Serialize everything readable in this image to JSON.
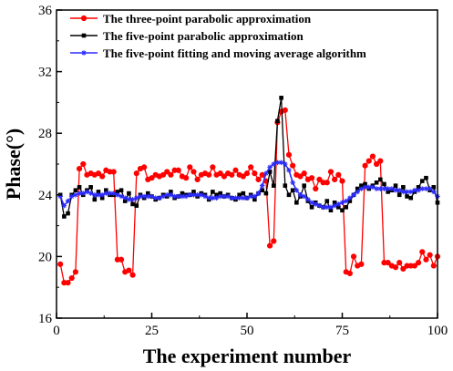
{
  "chart_data": {
    "type": "line",
    "title": "",
    "xlabel": "The experiment number",
    "ylabel": "Phase(°)",
    "xlim": [
      0,
      100
    ],
    "ylim": [
      16,
      36
    ],
    "x_ticks": [
      0,
      25,
      50,
      75,
      100
    ],
    "x_tick_labels": [
      "0",
      "25",
      "50",
      "75",
      "100"
    ],
    "y_ticks": [
      16,
      20,
      24,
      28,
      32,
      36
    ],
    "y_tick_labels": [
      "16",
      "20",
      "24",
      "28",
      "32",
      "36"
    ],
    "grid": false,
    "legend_position": "top-left",
    "series": [
      {
        "name": "The three-point parabolic approximation",
        "color": "#ff0000",
        "marker": "circle",
        "x": [
          1,
          2,
          3,
          4,
          5,
          6,
          7,
          8,
          9,
          10,
          11,
          12,
          13,
          14,
          15,
          16,
          17,
          18,
          19,
          20,
          21,
          22,
          23,
          24,
          25,
          26,
          27,
          28,
          29,
          30,
          31,
          32,
          33,
          34,
          35,
          36,
          37,
          38,
          39,
          40,
          41,
          42,
          43,
          44,
          45,
          46,
          47,
          48,
          49,
          50,
          51,
          52,
          53,
          54,
          55,
          56,
          57,
          58,
          59,
          60,
          61,
          62,
          63,
          64,
          65,
          66,
          67,
          68,
          69,
          70,
          71,
          72,
          73,
          74,
          75,
          76,
          77,
          78,
          79,
          80,
          81,
          82,
          83,
          84,
          85,
          86,
          87,
          88,
          89,
          90,
          91,
          92,
          93,
          94,
          95,
          96,
          97,
          98,
          99,
          100
        ],
        "values": [
          19.5,
          18.3,
          18.3,
          18.6,
          19.0,
          25.7,
          26.0,
          25.3,
          25.4,
          25.3,
          25.4,
          25.2,
          25.6,
          25.5,
          25.5,
          19.8,
          19.8,
          19.0,
          19.1,
          18.8,
          25.4,
          25.7,
          25.8,
          25.0,
          25.1,
          25.3,
          25.2,
          25.3,
          25.5,
          25.3,
          25.6,
          25.6,
          25.2,
          25.1,
          25.8,
          25.5,
          25.0,
          25.3,
          25.4,
          25.3,
          25.8,
          25.3,
          25.4,
          25.2,
          25.4,
          25.3,
          25.6,
          25.3,
          25.2,
          25.4,
          25.8,
          25.4,
          25.0,
          25.3,
          24.9,
          20.7,
          21.0,
          28.7,
          29.4,
          29.5,
          26.6,
          25.9,
          25.3,
          25.2,
          25.4,
          25.0,
          25.1,
          24.4,
          25.0,
          24.8,
          24.8,
          25.5,
          25.0,
          25.3,
          24.9,
          19.0,
          18.9,
          20.0,
          19.4,
          19.5,
          25.9,
          26.2,
          26.5,
          26.0,
          26.2,
          19.6,
          19.6,
          19.4,
          19.3,
          19.6,
          19.2,
          19.4,
          19.4,
          19.4,
          19.6,
          20.3,
          19.8,
          20.1,
          19.4,
          20.0
        ]
      },
      {
        "name": "The five-point parabolic approximation",
        "color": "#000000",
        "marker": "square",
        "x": [
          1,
          2,
          3,
          4,
          5,
          6,
          7,
          8,
          9,
          10,
          11,
          12,
          13,
          14,
          15,
          16,
          17,
          18,
          19,
          20,
          21,
          22,
          23,
          24,
          25,
          26,
          27,
          28,
          29,
          30,
          31,
          32,
          33,
          34,
          35,
          36,
          37,
          38,
          39,
          40,
          41,
          42,
          43,
          44,
          45,
          46,
          47,
          48,
          49,
          50,
          51,
          52,
          53,
          54,
          55,
          56,
          57,
          58,
          59,
          60,
          61,
          62,
          63,
          64,
          65,
          66,
          67,
          68,
          69,
          70,
          71,
          72,
          73,
          74,
          75,
          76,
          77,
          78,
          79,
          80,
          81,
          82,
          83,
          84,
          85,
          86,
          87,
          88,
          89,
          90,
          91,
          92,
          93,
          94,
          95,
          96,
          97,
          98,
          99,
          100
        ],
        "values": [
          24.0,
          22.6,
          22.8,
          24.0,
          24.3,
          24.5,
          24.0,
          24.3,
          24.5,
          23.7,
          24.2,
          23.8,
          24.3,
          24.0,
          24.0,
          24.2,
          24.3,
          23.6,
          24.1,
          23.4,
          23.3,
          24.0,
          23.8,
          24.1,
          23.9,
          23.7,
          23.8,
          24.0,
          23.9,
          24.2,
          23.8,
          23.9,
          24.1,
          24.0,
          24.0,
          24.2,
          23.9,
          24.1,
          24.0,
          23.7,
          24.2,
          24.0,
          24.1,
          23.9,
          24.0,
          23.8,
          23.7,
          24.0,
          24.1,
          23.8,
          24.0,
          23.7,
          24.1,
          24.3,
          24.1,
          25.5,
          24.6,
          28.8,
          30.3,
          24.6,
          24.0,
          24.3,
          23.5,
          23.9,
          24.6,
          23.6,
          23.2,
          23.5,
          23.3,
          23.2,
          23.6,
          23.0,
          23.5,
          23.2,
          23.0,
          23.2,
          23.6,
          24.0,
          24.4,
          24.6,
          24.7,
          24.4,
          24.6,
          24.8,
          25.0,
          24.7,
          24.2,
          24.3,
          24.6,
          24.0,
          24.5,
          23.9,
          23.8,
          24.2,
          24.5,
          24.9,
          25.1,
          24.3,
          24.5,
          23.5
        ]
      },
      {
        "name": "The five-point fitting and moving average algorithm",
        "color": "#2b2bff",
        "marker": "star",
        "x": [
          1,
          2,
          3,
          4,
          5,
          6,
          7,
          8,
          9,
          10,
          11,
          12,
          13,
          14,
          15,
          16,
          17,
          18,
          19,
          20,
          21,
          22,
          23,
          24,
          25,
          26,
          27,
          28,
          29,
          30,
          31,
          32,
          33,
          34,
          35,
          36,
          37,
          38,
          39,
          40,
          41,
          42,
          43,
          44,
          45,
          46,
          47,
          48,
          49,
          50,
          51,
          52,
          53,
          54,
          55,
          56,
          57,
          58,
          59,
          60,
          61,
          62,
          63,
          64,
          65,
          66,
          67,
          68,
          69,
          70,
          71,
          72,
          73,
          74,
          75,
          76,
          77,
          78,
          79,
          80,
          81,
          82,
          83,
          84,
          85,
          86,
          87,
          88,
          89,
          90,
          91,
          92,
          93,
          94,
          95,
          96,
          97,
          98,
          99,
          100
        ],
        "values": [
          23.9,
          23.3,
          23.6,
          23.9,
          24.0,
          24.1,
          24.1,
          24.2,
          24.1,
          24.0,
          24.0,
          24.0,
          24.1,
          24.1,
          24.1,
          24.0,
          23.9,
          23.8,
          23.7,
          23.7,
          23.8,
          23.9,
          23.9,
          23.9,
          23.9,
          23.8,
          23.8,
          23.9,
          24.0,
          24.0,
          23.9,
          23.9,
          23.9,
          23.9,
          24.0,
          24.0,
          24.0,
          24.0,
          23.9,
          23.8,
          23.8,
          23.8,
          23.9,
          23.9,
          23.9,
          23.8,
          23.8,
          23.8,
          23.8,
          23.8,
          23.9,
          23.9,
          24.1,
          24.6,
          25.4,
          25.8,
          26.0,
          26.1,
          26.1,
          26.0,
          25.6,
          24.8,
          24.3,
          24.0,
          23.9,
          23.7,
          23.5,
          23.4,
          23.3,
          23.2,
          23.2,
          23.2,
          23.3,
          23.4,
          23.5,
          23.6,
          23.8,
          24.0,
          24.2,
          24.4,
          24.5,
          24.5,
          24.5,
          24.4,
          24.4,
          24.4,
          24.4,
          24.4,
          24.3,
          24.3,
          24.2,
          24.2,
          24.2,
          24.3,
          24.3,
          24.4,
          24.4,
          24.4,
          24.2,
          23.9
        ]
      }
    ]
  }
}
